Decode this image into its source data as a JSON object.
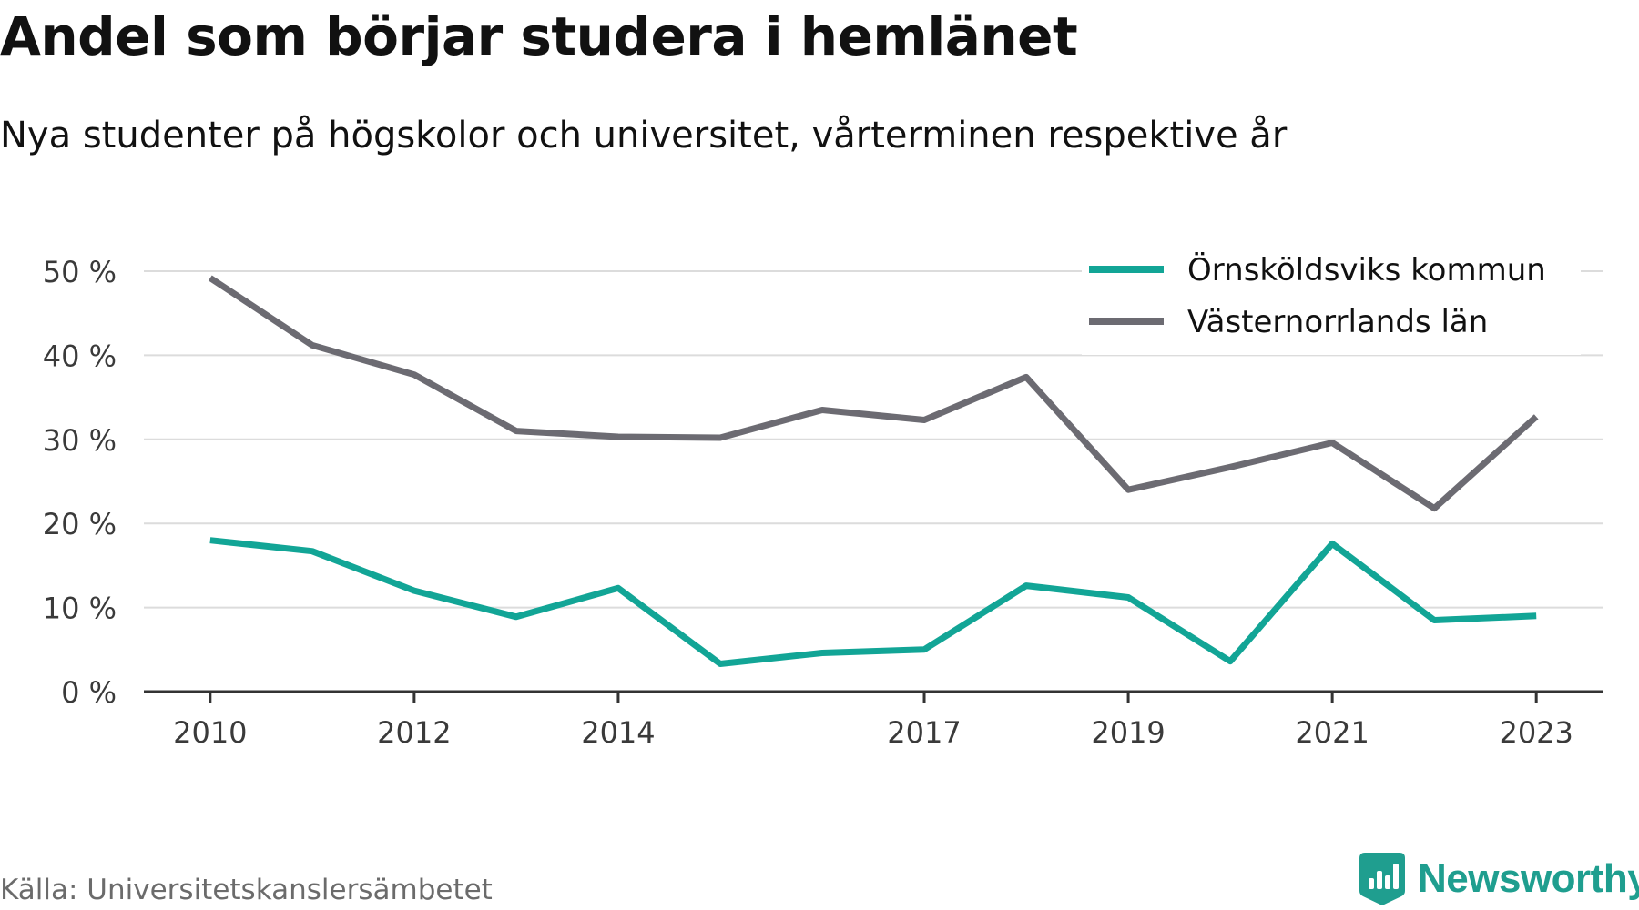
{
  "title": "Andel som börjar studera i hemlänet",
  "subtitle": "Nya studenter på högskolor och universitet, vårterminen respektive år",
  "source": "Källa: Universitetskanslersämbetet",
  "brand": {
    "name": "Newsworthy",
    "icon": "newsworthy-bar-chart-logo-icon",
    "color": "#1f9e8f"
  },
  "chart_data": {
    "type": "line",
    "x": [
      2010,
      2011,
      2012,
      2013,
      2014,
      2015,
      2016,
      2017,
      2018,
      2019,
      2020,
      2021,
      2022,
      2023
    ],
    "x_ticks": [
      2010,
      2012,
      2014,
      2017,
      2019,
      2021,
      2023
    ],
    "x_tick_labels": [
      "2010",
      "2012",
      "2014",
      "2017",
      "2019",
      "2021",
      "2023"
    ],
    "y_ticks": [
      0,
      10,
      20,
      30,
      40,
      50
    ],
    "y_tick_labels": [
      "0 %",
      "10 %",
      "20 %",
      "30 %",
      "40 %",
      "50 %"
    ],
    "ylim": [
      0,
      50
    ],
    "xlim": [
      2009.35,
      2023.65
    ],
    "grid": true,
    "legend_position": "top-right",
    "series": [
      {
        "name": "Örnsköldsviks kommun",
        "color": "#12a596",
        "values": [
          18.0,
          16.7,
          12.0,
          8.9,
          12.3,
          3.3,
          4.6,
          5.0,
          12.6,
          11.2,
          3.6,
          17.6,
          8.5,
          9.0
        ]
      },
      {
        "name": "Västernorrlands län",
        "color": "#6c6b72",
        "values": [
          49.2,
          41.2,
          37.7,
          31.0,
          30.3,
          30.2,
          33.5,
          32.3,
          37.4,
          24.0,
          26.7,
          29.6,
          21.8,
          32.7
        ]
      }
    ]
  }
}
